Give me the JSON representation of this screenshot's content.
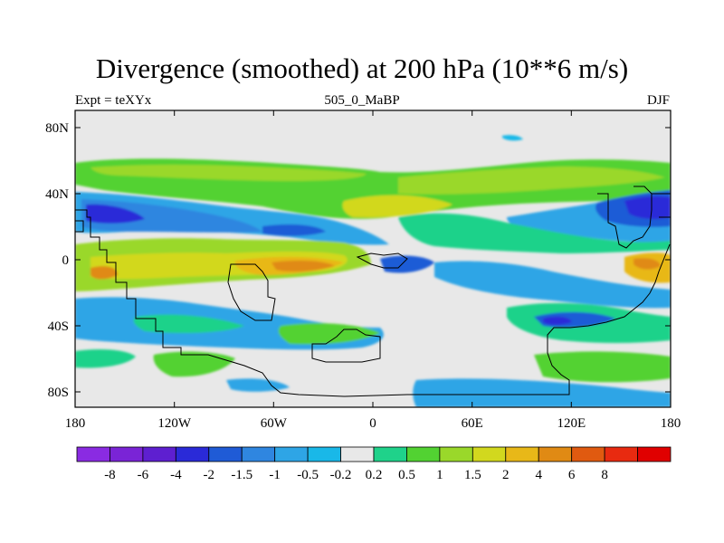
{
  "title": "Divergence (smoothed) at 200 hPa (10**6 m/s)",
  "left_label": "Expt = teXYx",
  "center_label": "505_0_MaBP",
  "right_label": "DJF",
  "lat_labels": [
    "80N",
    "40N",
    "0",
    "40S",
    "80S"
  ],
  "lon_labels": [
    "180",
    "120W",
    "60W",
    "0",
    "60E",
    "120E",
    "180"
  ],
  "colorbar": {
    "colors": [
      "#8a2be2",
      "#7a24d6",
      "#5e1fd0",
      "#2a2ad8",
      "#1f5bd6",
      "#2f86e0",
      "#2ea5e6",
      "#19b8e8",
      "#e8e8e8",
      "#1fd28a",
      "#52d232",
      "#9ad82a",
      "#d2d81e",
      "#e8b818",
      "#e08a14",
      "#e05a10",
      "#e82a10",
      "#e00000"
    ],
    "labels": [
      "-8",
      "-6",
      "-4",
      "-2",
      "-1.5",
      "-1",
      "-0.5",
      "-0.2",
      "0.2",
      "0.5",
      "1",
      "1.5",
      "2",
      "4",
      "6",
      "8"
    ]
  }
}
